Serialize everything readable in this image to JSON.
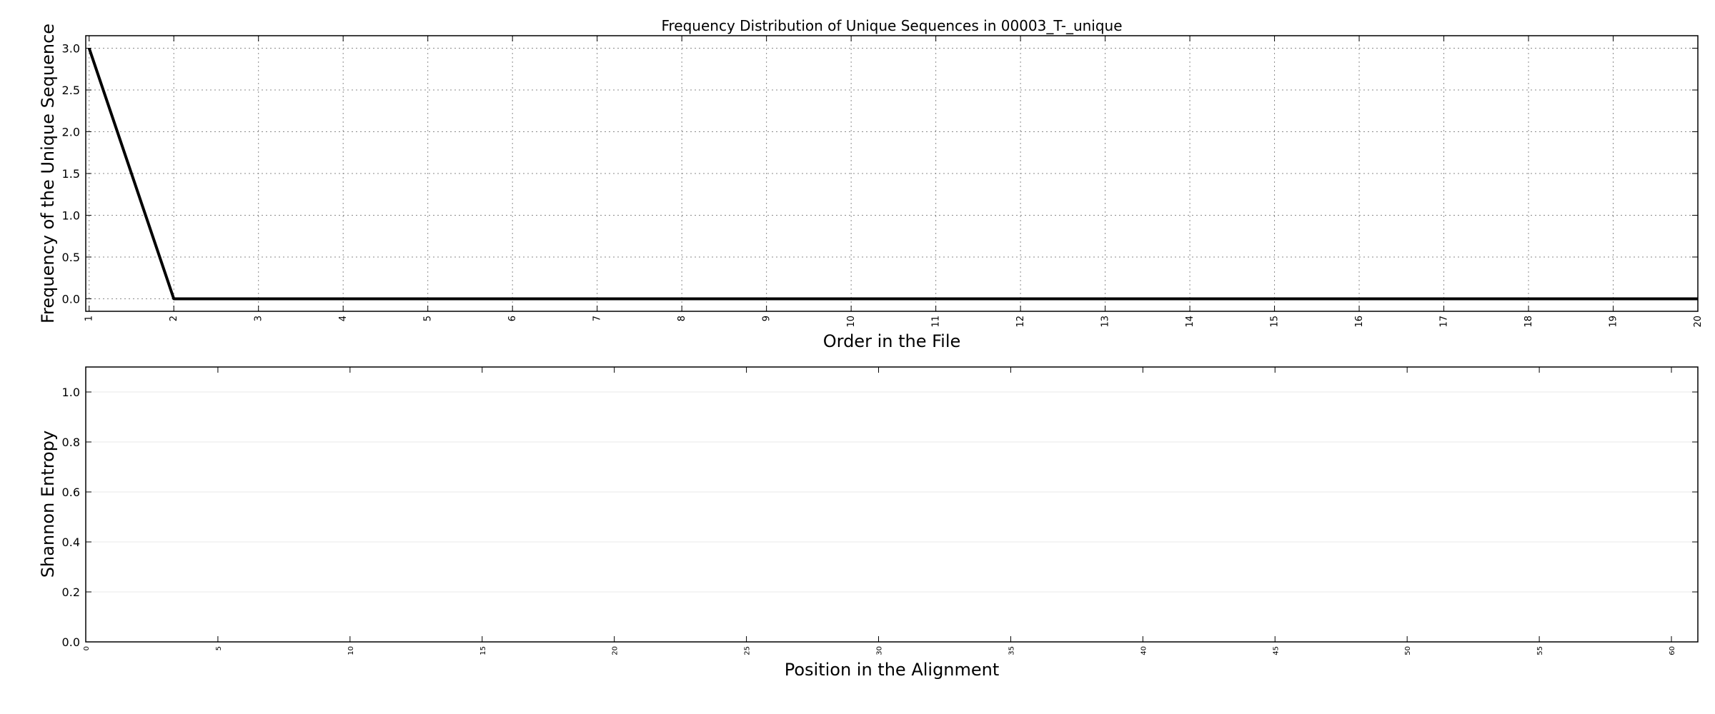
{
  "chart_data": [
    {
      "type": "line",
      "title": "Frequency Distribution of Unique Sequences in 00003_T-_unique",
      "xlabel": "Order in the File",
      "ylabel": "Frequency of the Unique Sequence",
      "xlim": [
        0.96,
        20
      ],
      "ylim": [
        -0.15,
        3.15
      ],
      "xticks": [
        1,
        2,
        3,
        4,
        5,
        6,
        7,
        8,
        9,
        10,
        11,
        12,
        13,
        14,
        15,
        16,
        17,
        18,
        19,
        20
      ],
      "yticks": [
        0.0,
        0.5,
        1.0,
        1.5,
        2.0,
        2.5,
        3.0
      ],
      "ytick_labels": [
        "0.0",
        "0.5",
        "1.0",
        "1.5",
        "2.0",
        "2.5",
        "3.0"
      ],
      "grid": true,
      "series": [
        {
          "color": "#000000",
          "x": [
            1,
            2,
            3,
            4,
            5,
            6,
            7,
            8,
            9,
            10,
            11,
            12,
            13,
            14,
            15,
            16,
            17,
            18,
            19,
            20
          ],
          "values": [
            3,
            0,
            0,
            0,
            0,
            0,
            0,
            0,
            0,
            0,
            0,
            0,
            0,
            0,
            0,
            0,
            0,
            0,
            0,
            0
          ]
        }
      ]
    },
    {
      "type": "bar",
      "title": "",
      "xlabel": "Position in the Alignment",
      "ylabel": "Shannon Entropy",
      "xlim": [
        0,
        61
      ],
      "ylim": [
        0,
        1.1
      ],
      "xticks": [
        0,
        5,
        10,
        15,
        20,
        25,
        30,
        35,
        40,
        45,
        50,
        55,
        60
      ],
      "yticks": [
        0.0,
        0.2,
        0.4,
        0.6,
        0.8,
        1.0
      ],
      "ytick_labels": [
        "0.0",
        "0.2",
        "0.4",
        "0.6",
        "0.8",
        "1.0"
      ],
      "grid": true,
      "series": []
    }
  ]
}
